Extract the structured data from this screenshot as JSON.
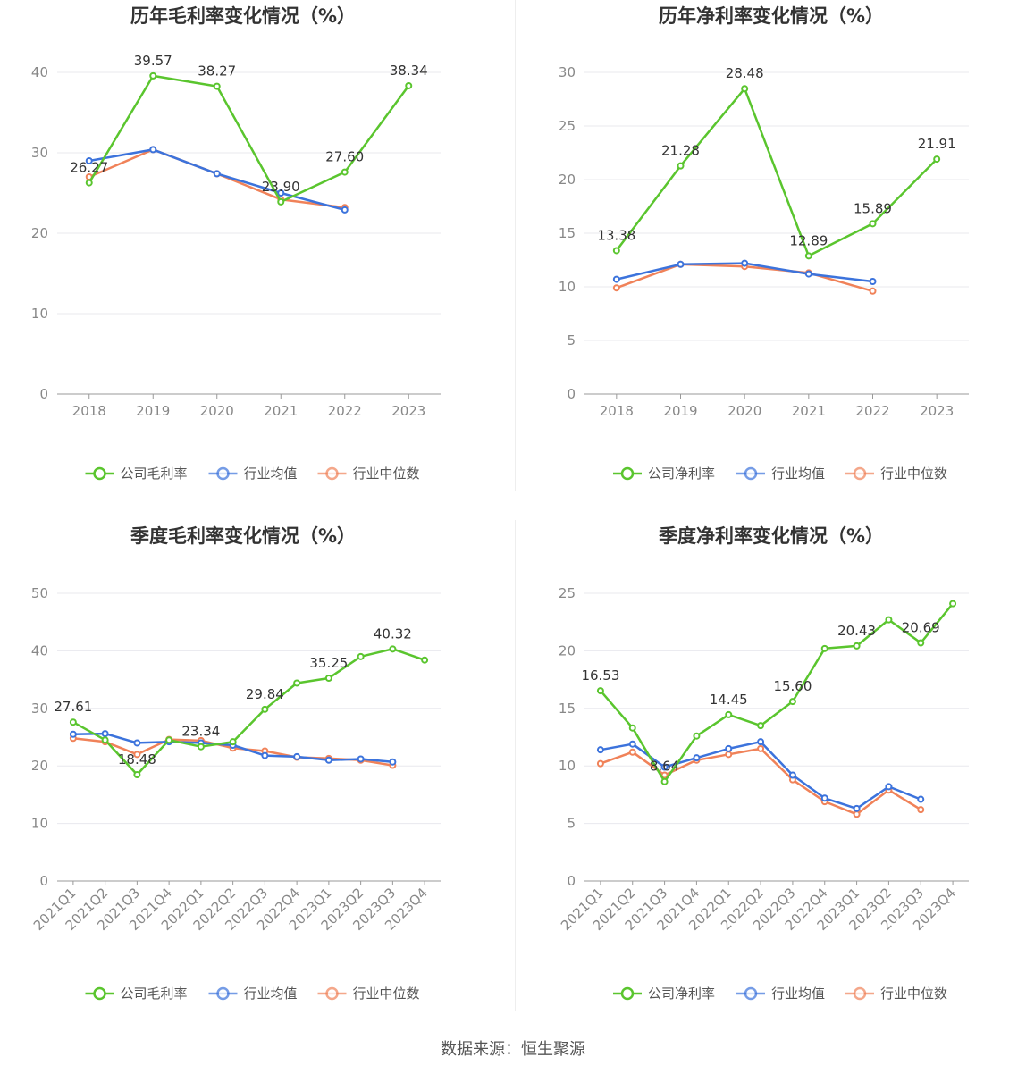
{
  "source_text": "数据来源：恒生聚源",
  "colors": {
    "company": "#5ac52e",
    "avg": "#3c73dc",
    "median": "#f08259"
  },
  "chart_data": [
    {
      "type": "line",
      "title": "历年毛利率变化情况（%）",
      "categories": [
        "2018",
        "2019",
        "2020",
        "2021",
        "2022",
        "2023"
      ],
      "ylim": [
        0,
        40
      ],
      "yticks": [
        0,
        10,
        20,
        30,
        40
      ],
      "grid": true,
      "legend": "bottom",
      "series": [
        {
          "name": "公司毛利率",
          "values": [
            26.27,
            39.57,
            38.27,
            23.9,
            27.6,
            38.34
          ],
          "labels": [
            "26.27",
            "39.57",
            "38.27",
            "23.90",
            "27.60",
            "38.34"
          ]
        },
        {
          "name": "行业均值",
          "values": [
            29.0,
            30.4,
            27.4,
            25.0,
            22.9,
            null
          ]
        },
        {
          "name": "行业中位数",
          "values": [
            27.0,
            30.4,
            27.4,
            24.2,
            23.2,
            null
          ]
        }
      ]
    },
    {
      "type": "line",
      "title": "历年净利率变化情况（%）",
      "categories": [
        "2018",
        "2019",
        "2020",
        "2021",
        "2022",
        "2023"
      ],
      "ylim": [
        0,
        30
      ],
      "yticks": [
        0,
        5,
        10,
        15,
        20,
        25,
        30
      ],
      "grid": true,
      "legend": "bottom",
      "series": [
        {
          "name": "公司净利率",
          "values": [
            13.38,
            21.28,
            28.48,
            12.89,
            15.89,
            21.91
          ],
          "labels": [
            "13.38",
            "21.28",
            "28.48",
            "12.89",
            "15.89",
            "21.91"
          ]
        },
        {
          "name": "行业均值",
          "values": [
            10.7,
            12.1,
            12.2,
            11.2,
            10.5,
            null
          ]
        },
        {
          "name": "行业中位数",
          "values": [
            9.9,
            12.1,
            11.9,
            11.3,
            9.6,
            null
          ]
        }
      ]
    },
    {
      "type": "line",
      "title": "季度毛利率变化情况（%）",
      "categories": [
        "2021Q1",
        "2021Q2",
        "2021Q3",
        "2021Q4",
        "2022Q1",
        "2022Q2",
        "2022Q3",
        "2022Q4",
        "2023Q1",
        "2023Q2",
        "2023Q3",
        "2023Q4"
      ],
      "ylim": [
        0,
        50
      ],
      "yticks": [
        0,
        10,
        20,
        30,
        40,
        50
      ],
      "grid": true,
      "legend": "bottom",
      "series": [
        {
          "name": "公司毛利率",
          "values": [
            27.61,
            24.5,
            18.48,
            24.5,
            23.34,
            24.2,
            29.84,
            34.4,
            35.25,
            39.0,
            40.32,
            38.4
          ],
          "labels": [
            "27.61",
            null,
            "18.48",
            null,
            "23.34",
            null,
            "29.84",
            null,
            "35.25",
            null,
            "40.32",
            null
          ]
        },
        {
          "name": "行业均值",
          "values": [
            25.5,
            25.6,
            24.0,
            24.2,
            24.0,
            23.6,
            21.8,
            21.6,
            21.0,
            21.2,
            20.7,
            null
          ]
        },
        {
          "name": "行业中位数",
          "values": [
            24.8,
            24.2,
            22.0,
            24.6,
            24.4,
            23.1,
            22.6,
            21.5,
            21.3,
            21.0,
            20.1,
            null
          ]
        }
      ]
    },
    {
      "type": "line",
      "title": "季度净利率变化情况（%）",
      "categories": [
        "2021Q1",
        "2021Q2",
        "2021Q3",
        "2021Q4",
        "2022Q1",
        "2022Q2",
        "2022Q3",
        "2022Q4",
        "2023Q1",
        "2023Q2",
        "2023Q3",
        "2023Q4"
      ],
      "ylim": [
        0,
        25
      ],
      "yticks": [
        0,
        5,
        10,
        15,
        20,
        25
      ],
      "grid": true,
      "legend": "bottom",
      "series": [
        {
          "name": "公司净利率",
          "values": [
            16.53,
            13.3,
            8.64,
            12.6,
            14.45,
            13.5,
            15.6,
            20.2,
            20.43,
            22.7,
            20.69,
            24.1
          ],
          "labels": [
            "16.53",
            null,
            "8.64",
            null,
            "14.45",
            null,
            "15.60",
            null,
            "20.43",
            null,
            "20.69",
            null
          ]
        },
        {
          "name": "行业均值",
          "values": [
            11.4,
            11.9,
            9.9,
            10.7,
            11.5,
            12.1,
            9.2,
            7.2,
            6.3,
            8.2,
            7.1,
            null
          ]
        },
        {
          "name": "行业中位数",
          "values": [
            10.2,
            11.2,
            9.2,
            10.5,
            11.0,
            11.5,
            8.8,
            6.9,
            5.8,
            7.9,
            6.2,
            null
          ]
        }
      ]
    }
  ]
}
